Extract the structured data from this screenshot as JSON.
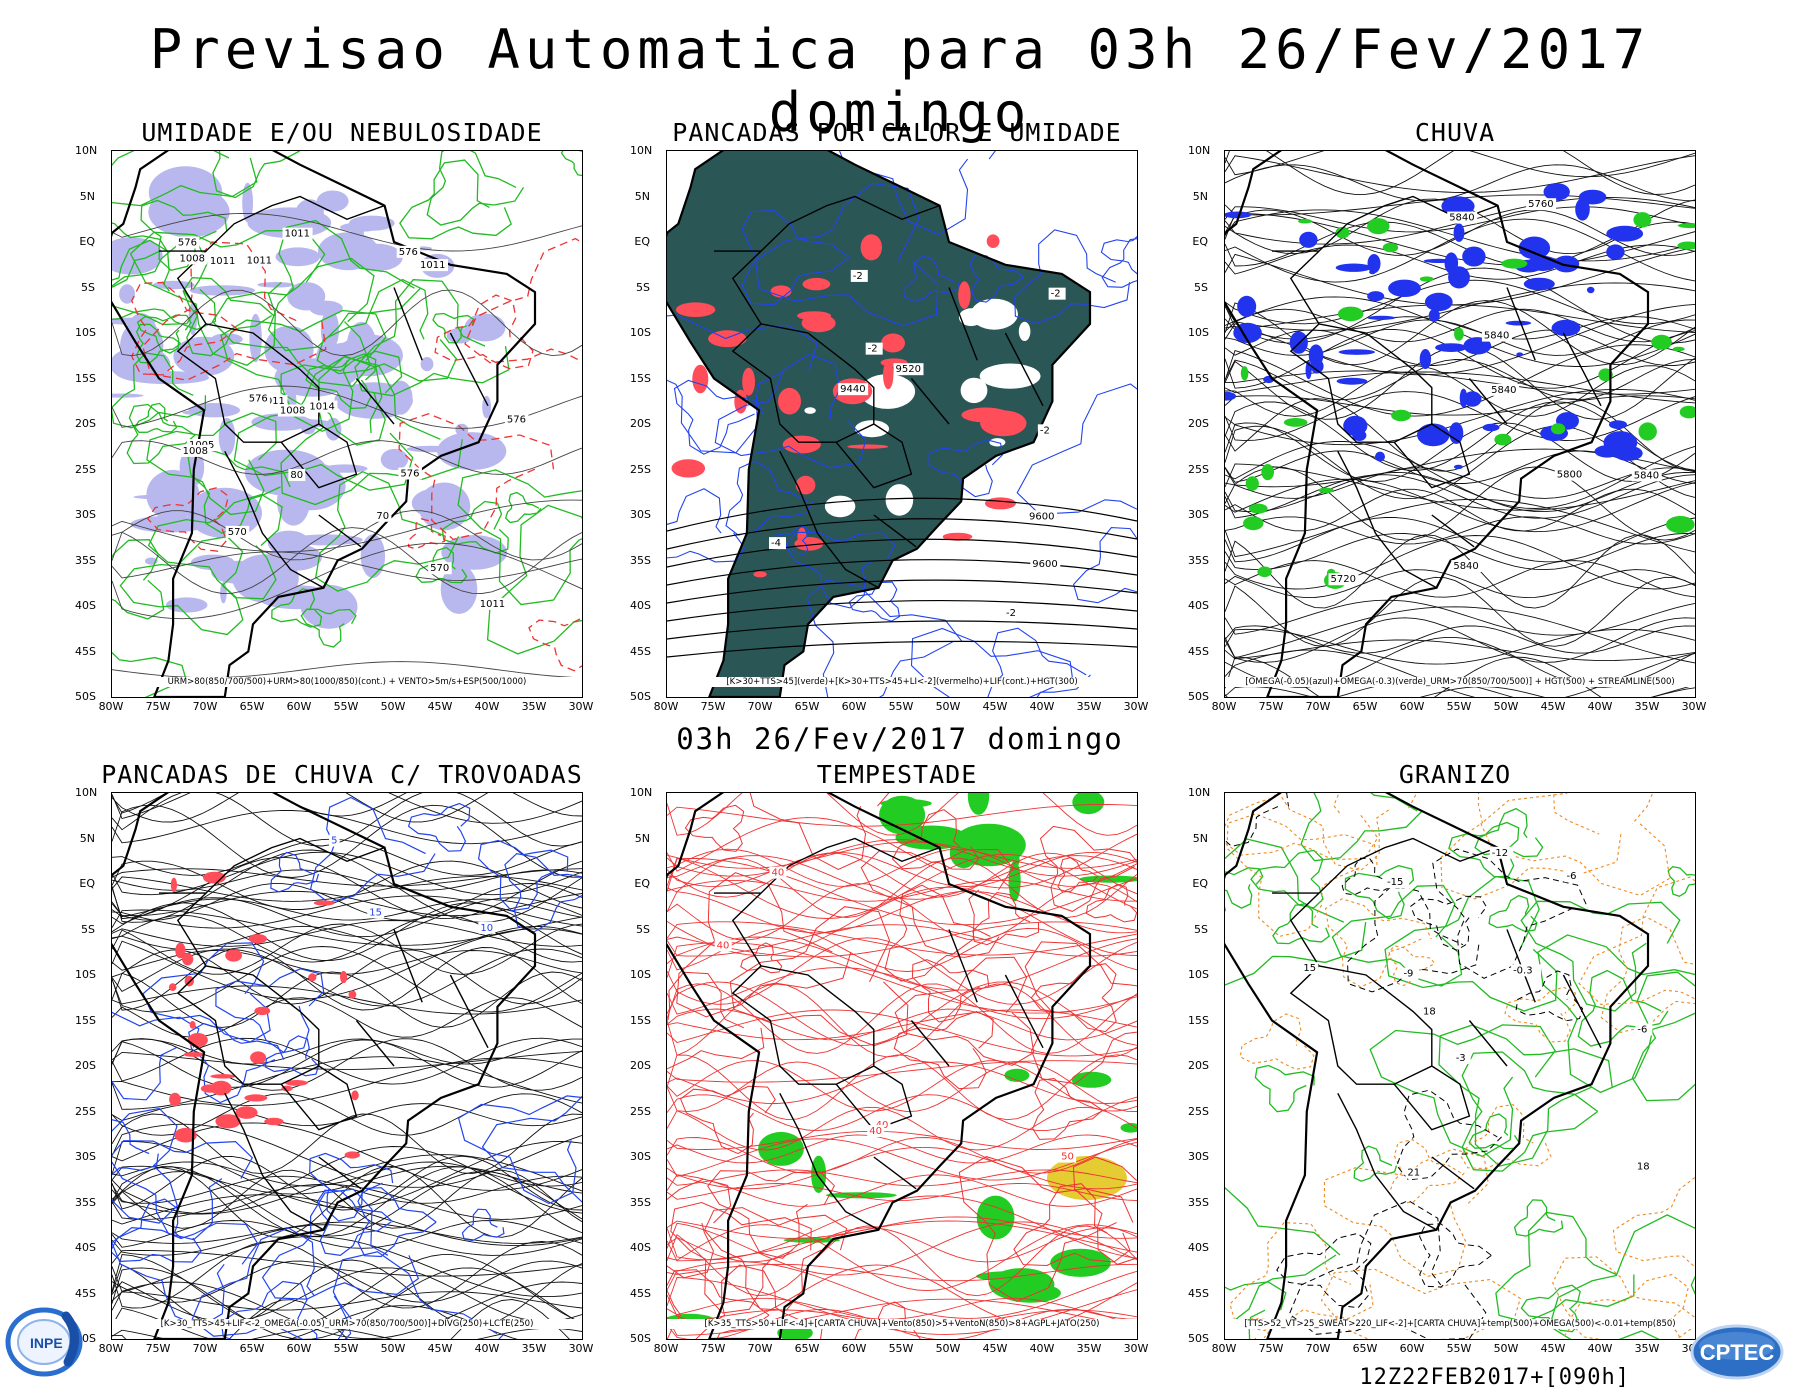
{
  "title": "Previsao Automatica  para 03h 26/Fev/2017 domingo",
  "mid_title": "03h 26/Fev/2017 domingo",
  "footer": "12Z22FEB2017+[090h]",
  "logos": {
    "left": "INPE",
    "right": "CPTEC"
  },
  "axes": {
    "lat_labels": [
      "10N",
      "5N",
      "EQ",
      "5S",
      "10S",
      "15S",
      "20S",
      "25S",
      "30S",
      "35S",
      "40S",
      "45S",
      "50S"
    ],
    "lon_labels": [
      "80W",
      "75W",
      "70W",
      "65W",
      "60W",
      "55W",
      "50W",
      "45W",
      "40W",
      "35W",
      "30W"
    ]
  },
  "panels": [
    {
      "title": "UMIDADE E/OU NEBULOSIDADE",
      "legend": "URM>80(850/700/500)+URM>80(1000/850)(cont.) + VENTO>5m/s+ESP(500/1000)",
      "labels": [
        "1011",
        "1011",
        "1011",
        "1011",
        "1011",
        "1008",
        "1005",
        "1008",
        "1008",
        "1011",
        "1014",
        "576",
        "576",
        "576",
        "576",
        "576",
        "570",
        "570",
        "80",
        "70"
      ]
    },
    {
      "title": "PANCADAS POR CALOR E UMIDADE",
      "legend": "[K>30+TTS>45](verde)+[K>30+TTS>45+LI<-2](vermelho)+LIF(cont.)+HGT(300)",
      "labels": [
        "-2",
        "-2",
        "-2",
        "-2",
        "-4",
        "-2",
        "9600",
        "9600",
        "9520",
        "9440"
      ]
    },
    {
      "title": "CHUVA",
      "legend": "[OMEGA(-0.05)(azul)+OMEGA(-0.3)(verde)_URM>70(850/700/500)] + HGT(500) + STREAMLINE(500)",
      "labels": [
        "5840",
        "5840",
        "5840",
        "5840",
        "5840",
        "5800",
        "5760",
        "5720"
      ]
    },
    {
      "title": "PANCADAS DE CHUVA C/ TROVOADAS",
      "legend": "[K>30_TTS>45+LIF<-2_OMEGA(-0.05)_URM>70(850/700/500)]+DIVG(250)+LCTE(250)",
      "labels": [
        "5",
        "10",
        "15"
      ]
    },
    {
      "title": "TEMPESTADE",
      "legend": "[K>35_TTS>50+LIF<-4]+[CARTA CHUVA]+Vento(850)>5+VentoN(850)>8+AGPL+JATO(250)",
      "labels": [
        "40",
        "50",
        "40",
        "40",
        "40"
      ]
    },
    {
      "title": "GRANIZO",
      "legend": "[TTS>52_VT>25_SWEAT>220_LIF<-2]+[CARTA CHUVA]+temp(500)+OMEGA(500)<-0.01+temp(850)",
      "labels": [
        "15",
        "18",
        "21",
        "18",
        "15",
        "-6",
        "-9",
        "-12",
        "-15",
        "-0.3",
        "-3",
        "-6"
      ]
    }
  ],
  "colors": {
    "coast": "#000000",
    "humidity_fill": "#b8b8ee",
    "green_contour": "#22bb22",
    "red_contour": "#ee3333",
    "blue_contour": "#2244ee",
    "dark_fill": "#2b5656",
    "red_fill": "#ff4d5a",
    "blue_fill": "#2233ee",
    "green_fill": "#22cc22",
    "orange_contour": "#ee8a22",
    "yellow_fill": "#e6cc33"
  }
}
